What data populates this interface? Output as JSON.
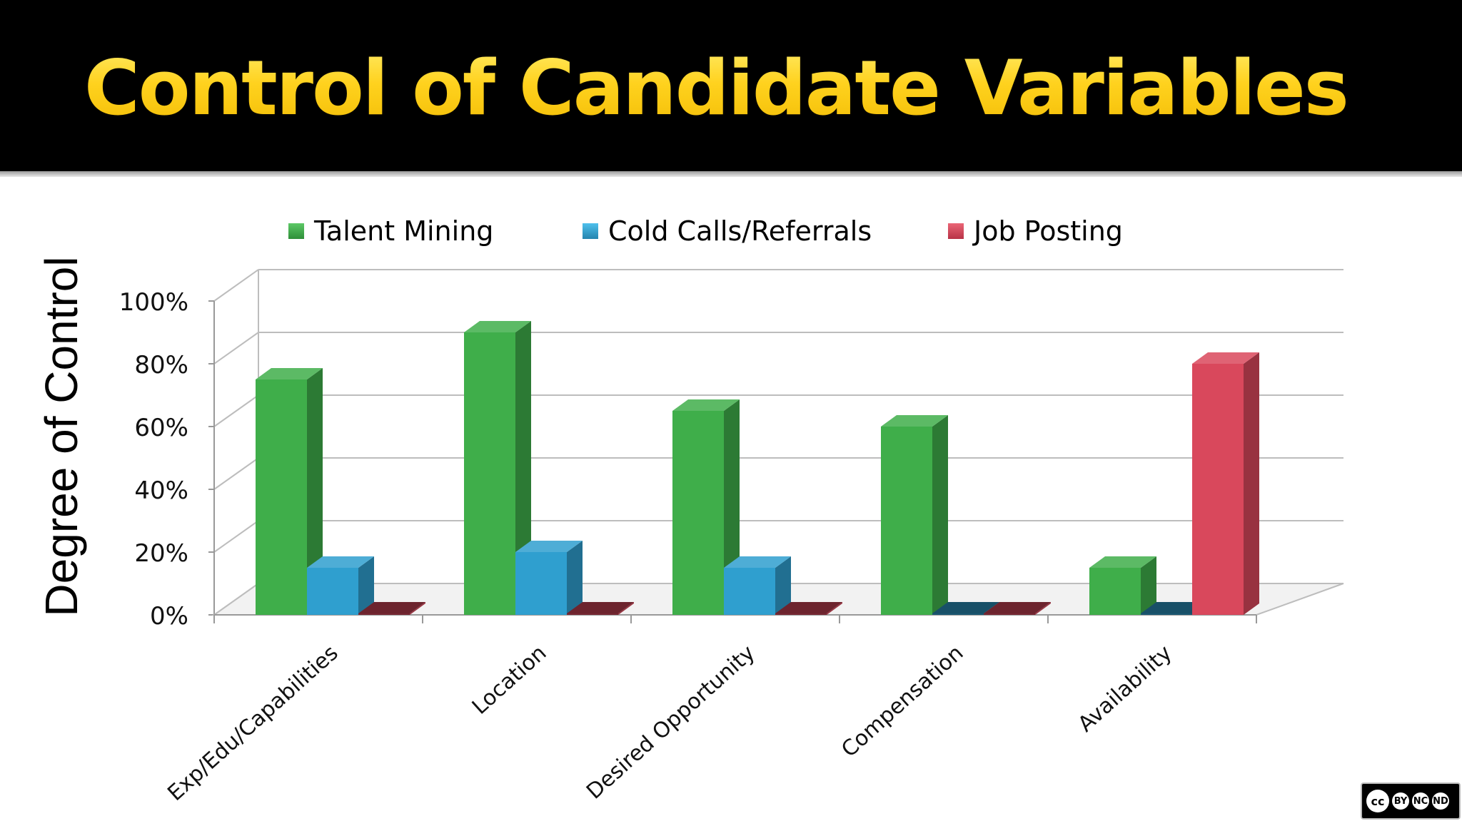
{
  "slide": {
    "title": "Control of Candidate Variables"
  },
  "colors": {
    "title_gold": "#ffd21e",
    "talent_mining": "#3fae4a",
    "cold_calls": "#2f9fcf",
    "job_posting": "#d9485c"
  },
  "license_badge": {
    "icon": "creative-commons-icon",
    "cc": "cc",
    "by": "BY",
    "nc": "NC",
    "nd": "ND"
  },
  "chart_data": {
    "type": "bar",
    "title": "Control of Candidate Variables",
    "ylabel": "Degree of Control",
    "xlabel": "",
    "ylim": [
      0,
      100
    ],
    "yticks": [
      "0%",
      "20%",
      "40%",
      "60%",
      "80%",
      "100%"
    ],
    "categories": [
      "Exp/Edu/Capabilities",
      "Location",
      "Desired Opportunity",
      "Compensation",
      "Availability"
    ],
    "legend_position": "top",
    "series": [
      {
        "name": "Talent Mining",
        "color": "#3fae4a",
        "values": [
          75,
          90,
          65,
          60,
          15
        ]
      },
      {
        "name": "Cold Calls/Referrals",
        "color": "#2f9fcf",
        "values": [
          15,
          20,
          15,
          0,
          0
        ]
      },
      {
        "name": "Job Posting",
        "color": "#d9485c",
        "values": [
          0,
          0,
          0,
          0,
          80
        ]
      }
    ]
  }
}
